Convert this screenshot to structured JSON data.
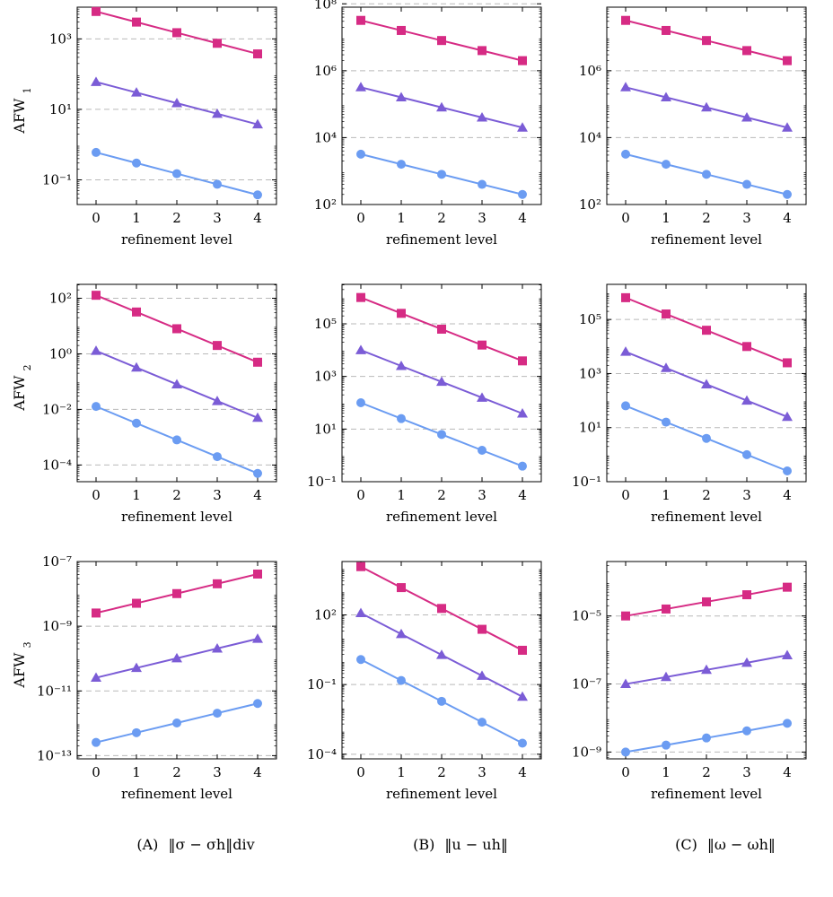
{
  "row_labels": [
    "AFW1",
    "AFW2",
    "AFW3"
  ],
  "captions": [
    {
      "label": "(A)",
      "expr": "‖σ − σh‖div"
    },
    {
      "label": "(B)",
      "expr": "‖u − uh‖"
    },
    {
      "label": "(C)",
      "expr": "‖ω − ωh‖"
    }
  ],
  "colors": {
    "magenta": "#d62b84",
    "purple": "#7b5cd6",
    "blue": "#6b9cf2",
    "grid": "#b9b9b9"
  },
  "chart_data": [
    {
      "type": "line",
      "row": 0,
      "col": 0,
      "log_y": true,
      "xlabel": "refinement level",
      "x": [
        0,
        1,
        2,
        3,
        4
      ],
      "ylim_exp": [
        -1.7,
        3.9
      ],
      "yticks_exp": [
        -1,
        1,
        3
      ],
      "series": [
        {
          "marker": "square",
          "color": "magenta",
          "values": [
            6000,
            3000,
            1500,
            750,
            375
          ]
        },
        {
          "marker": "triangle",
          "color": "purple",
          "values": [
            60,
            30,
            15,
            7.5,
            3.75
          ]
        },
        {
          "marker": "circle",
          "color": "blue",
          "values": [
            0.6,
            0.3,
            0.15,
            0.075,
            0.0375
          ]
        }
      ]
    },
    {
      "type": "line",
      "row": 0,
      "col": 1,
      "log_y": true,
      "xlabel": "refinement level",
      "x": [
        0,
        1,
        2,
        3,
        4
      ],
      "ylim_exp": [
        2.0,
        7.9
      ],
      "yticks_exp": [
        2,
        4,
        6,
        8
      ],
      "series": [
        {
          "marker": "square",
          "color": "magenta",
          "values": [
            32000000,
            16000000,
            8000000,
            4000000,
            2000000
          ]
        },
        {
          "marker": "triangle",
          "color": "purple",
          "values": [
            320000,
            160000,
            80000,
            40000,
            20000
          ]
        },
        {
          "marker": "circle",
          "color": "blue",
          "values": [
            3200,
            1600,
            800,
            400,
            200
          ]
        }
      ]
    },
    {
      "type": "line",
      "row": 0,
      "col": 2,
      "log_y": true,
      "xlabel": "refinement level",
      "x": [
        0,
        1,
        2,
        3,
        4
      ],
      "ylim_exp": [
        2.0,
        7.9
      ],
      "yticks_exp": [
        2,
        4,
        6
      ],
      "series": [
        {
          "marker": "square",
          "color": "magenta",
          "values": [
            32000000,
            16000000,
            8000000,
            4000000,
            2000000
          ]
        },
        {
          "marker": "triangle",
          "color": "purple",
          "values": [
            320000,
            160000,
            80000,
            40000,
            20000
          ]
        },
        {
          "marker": "circle",
          "color": "blue",
          "values": [
            3200,
            1600,
            800,
            400,
            200
          ]
        }
      ]
    },
    {
      "type": "line",
      "row": 1,
      "col": 0,
      "log_y": true,
      "xlabel": "refinement level",
      "x": [
        0,
        1,
        2,
        3,
        4
      ],
      "ylim_exp": [
        -4.6,
        2.5
      ],
      "yticks_exp": [
        -4,
        -2,
        0,
        2
      ],
      "series": [
        {
          "marker": "square",
          "color": "magenta",
          "values": [
            128,
            32,
            8,
            2,
            0.5
          ]
        },
        {
          "marker": "triangle",
          "color": "purple",
          "values": [
            1.28,
            0.32,
            0.08,
            0.02,
            0.005
          ]
        },
        {
          "marker": "circle",
          "color": "blue",
          "values": [
            0.0128,
            0.0032,
            0.0008,
            0.0002,
            5e-05
          ]
        }
      ]
    },
    {
      "type": "line",
      "row": 1,
      "col": 1,
      "log_y": true,
      "xlabel": "refinement level",
      "x": [
        0,
        1,
        2,
        3,
        4
      ],
      "ylim_exp": [
        -1.0,
        6.5
      ],
      "yticks_exp": [
        -1,
        1,
        3,
        5
      ],
      "series": [
        {
          "marker": "square",
          "color": "magenta",
          "values": [
            1000000,
            250000,
            62500,
            15600,
            3900
          ]
        },
        {
          "marker": "triangle",
          "color": "purple",
          "values": [
            10000,
            2500,
            625,
            156,
            39
          ]
        },
        {
          "marker": "circle",
          "color": "blue",
          "values": [
            100,
            25,
            6.25,
            1.56,
            0.39
          ]
        }
      ]
    },
    {
      "type": "line",
      "row": 1,
      "col": 2,
      "log_y": true,
      "xlabel": "refinement level",
      "x": [
        0,
        1,
        2,
        3,
        4
      ],
      "ylim_exp": [
        -1.0,
        6.3
      ],
      "yticks_exp": [
        -1,
        1,
        3,
        5
      ],
      "series": [
        {
          "marker": "square",
          "color": "magenta",
          "values": [
            640000,
            160000,
            40000,
            10000,
            2500
          ]
        },
        {
          "marker": "triangle",
          "color": "purple",
          "values": [
            6400,
            1600,
            400,
            100,
            25
          ]
        },
        {
          "marker": "circle",
          "color": "blue",
          "values": [
            64,
            16,
            4,
            1,
            0.25
          ]
        }
      ]
    },
    {
      "type": "line",
      "row": 2,
      "col": 0,
      "log_y": true,
      "xlabel": "refinement level",
      "x": [
        0,
        1,
        2,
        3,
        4
      ],
      "ylim_exp": [
        -13.1,
        -7.0
      ],
      "yticks_exp": [
        -13,
        -11,
        -9,
        -7
      ],
      "series": [
        {
          "marker": "square",
          "color": "magenta",
          "values": [
            2.56e-09,
            5.12e-09,
            1.02e-08,
            2.05e-08,
            4.1e-08
          ]
        },
        {
          "marker": "triangle",
          "color": "purple",
          "values": [
            2.56e-11,
            5.12e-11,
            1.02e-10,
            2.05e-10,
            4.1e-10
          ]
        },
        {
          "marker": "circle",
          "color": "blue",
          "values": [
            2.56e-13,
            5.12e-13,
            1.02e-12,
            2.05e-12,
            4.1e-12
          ]
        }
      ]
    },
    {
      "type": "line",
      "row": 2,
      "col": 1,
      "log_y": true,
      "xlabel": "refinement level",
      "x": [
        0,
        1,
        2,
        3,
        4
      ],
      "ylim_exp": [
        -4.2,
        4.3
      ],
      "yticks_exp": [
        -4,
        -1,
        2
      ],
      "series": [
        {
          "marker": "square",
          "color": "magenta",
          "values": [
            12000,
            1500,
            190,
            24,
            3
          ]
        },
        {
          "marker": "triangle",
          "color": "purple",
          "values": [
            120,
            15,
            1.9,
            0.24,
            0.03
          ]
        },
        {
          "marker": "circle",
          "color": "blue",
          "values": [
            1.2,
            0.15,
            0.019,
            0.0024,
            0.0003
          ]
        }
      ]
    },
    {
      "type": "line",
      "row": 2,
      "col": 2,
      "log_y": true,
      "xlabel": "refinement level",
      "x": [
        0,
        1,
        2,
        3,
        4
      ],
      "ylim_exp": [
        -9.2,
        -3.4
      ],
      "yticks_exp": [
        -9,
        -7,
        -5
      ],
      "series": [
        {
          "marker": "square",
          "color": "magenta",
          "values": [
            1e-05,
            1.6e-05,
            2.6e-05,
            4.2e-05,
            7e-05
          ]
        },
        {
          "marker": "triangle",
          "color": "purple",
          "values": [
            1e-07,
            1.6e-07,
            2.6e-07,
            4.2e-07,
            7e-07
          ]
        },
        {
          "marker": "circle",
          "color": "blue",
          "values": [
            1e-09,
            1.6e-09,
            2.6e-09,
            4.2e-09,
            7e-09
          ]
        }
      ]
    }
  ]
}
